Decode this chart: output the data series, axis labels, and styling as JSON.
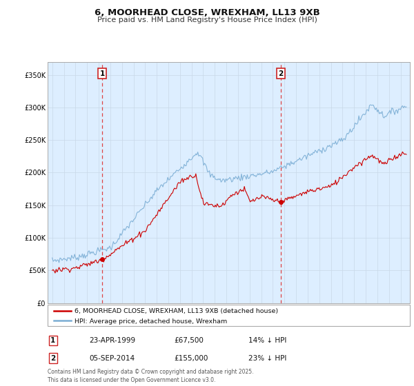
{
  "title_line1": "6, MOORHEAD CLOSE, WREXHAM, LL13 9XB",
  "title_line2": "Price paid vs. HM Land Registry's House Price Index (HPI)",
  "legend_label_red": "6, MOORHEAD CLOSE, WREXHAM, LL13 9XB (detached house)",
  "legend_label_blue": "HPI: Average price, detached house, Wrexham",
  "annotation1_date": "23-APR-1999",
  "annotation1_price": "£67,500",
  "annotation1_hpi": "14% ↓ HPI",
  "annotation2_date": "05-SEP-2014",
  "annotation2_price": "£155,000",
  "annotation2_hpi": "23% ↓ HPI",
  "footer": "Contains HM Land Registry data © Crown copyright and database right 2025.\nThis data is licensed under the Open Government Licence v3.0.",
  "ylim": [
    0,
    370000
  ],
  "yticks": [
    0,
    50000,
    100000,
    150000,
    200000,
    250000,
    300000,
    350000
  ],
  "color_red": "#cc0000",
  "color_blue": "#7aadd4",
  "color_vline": "#dd4444",
  "bg_plot": "#ddeeff",
  "bg_fig": "#ffffff",
  "purchase1_year": 1999.31,
  "purchase1_price": 67500,
  "purchase2_year": 2014.68,
  "purchase2_price": 155000,
  "xlim_left": 1994.6,
  "xlim_right": 2025.8
}
